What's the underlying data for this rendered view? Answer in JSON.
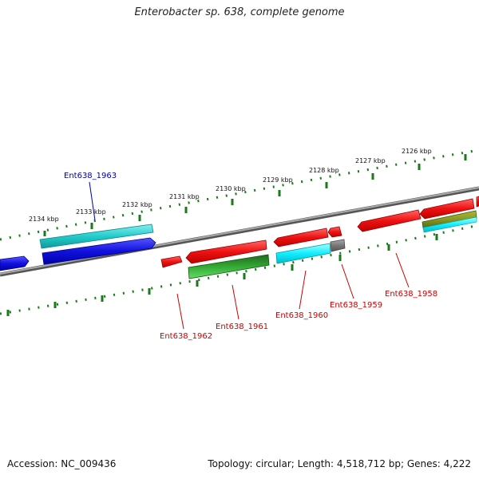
{
  "title": "Enterobacter sp. 638, complete genome",
  "footer": {
    "accession": "Accession: NC_009436",
    "topology": "Topology: circular; Length: 4,518,712 bp; Genes: 4,222"
  },
  "scale_labels": [
    "2134 kbp",
    "2133 kbp",
    "2132 kbp",
    "2131 kbp",
    "2130 kbp",
    "2129 kbp",
    "2128 kbp",
    "2127 kbp",
    "2126 kbp"
  ],
  "gene_labels": [
    {
      "text": "Ent638_1963",
      "color": "#0000aa"
    },
    {
      "text": "Ent638_1962",
      "color": "#cc0000"
    },
    {
      "text": "Ent638_1961",
      "color": "#cc0000"
    },
    {
      "text": "Ent638_1960",
      "color": "#cc0000"
    },
    {
      "text": "Ent638_1959",
      "color": "#cc0000"
    },
    {
      "text": "Ent638_1958",
      "color": "#cc0000"
    }
  ],
  "colors": {
    "backbone": "#777777",
    "ticks": "#1a7a1a",
    "forward_red": "#ee1111",
    "cds_blue": "#1111dd",
    "cds_cyan": "#22cccc",
    "cds_green": "#33aa33",
    "cds_gray": "#777777",
    "cds_olive": "#889922"
  }
}
